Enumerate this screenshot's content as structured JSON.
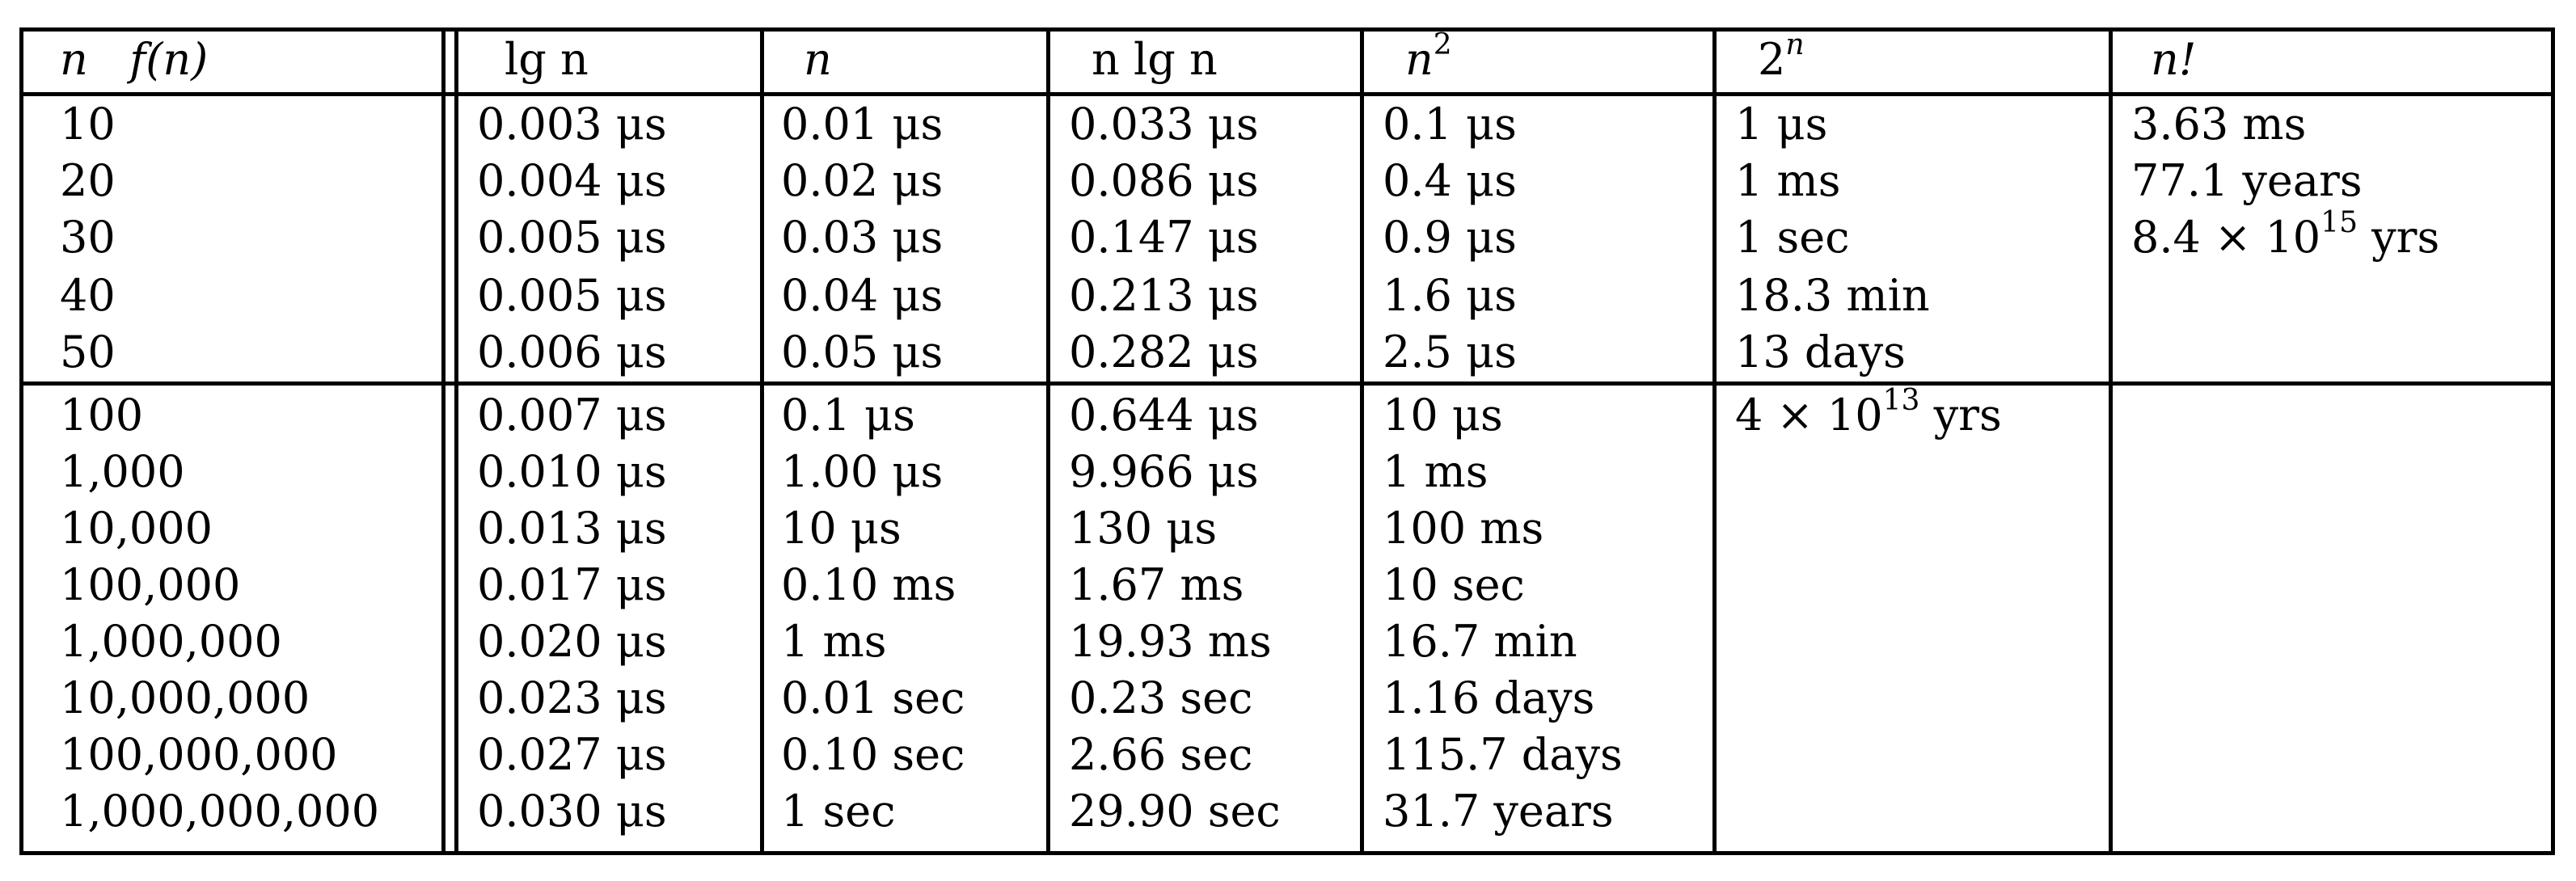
{
  "table": {
    "headers": [
      {
        "base": "n   f(n)",
        "sup": ""
      },
      {
        "base": "lg n",
        "sup": ""
      },
      {
        "base": "n",
        "sup": ""
      },
      {
        "base": "n lg n",
        "sup": ""
      },
      {
        "base": "n",
        "sup": "2"
      },
      {
        "base": "2",
        "sup": "n"
      },
      {
        "base": "n!",
        "sup": ""
      }
    ],
    "rows": [
      {
        "cells": [
          {
            "base": "10"
          },
          {
            "base": "0.003 μs"
          },
          {
            "base": "0.01 μs"
          },
          {
            "base": "0.033 μs"
          },
          {
            "base": "0.1 μs"
          },
          {
            "base": "1 μs"
          },
          {
            "base": "3.63 ms"
          }
        ]
      },
      {
        "cells": [
          {
            "base": "20"
          },
          {
            "base": "0.004 μs"
          },
          {
            "base": "0.02 μs"
          },
          {
            "base": "0.086 μs"
          },
          {
            "base": "0.4 μs"
          },
          {
            "base": "1 ms"
          },
          {
            "base": "77.1 years"
          }
        ]
      },
      {
        "cells": [
          {
            "base": "30"
          },
          {
            "base": "0.005 μs"
          },
          {
            "base": "0.03 μs"
          },
          {
            "base": "0.147 μs"
          },
          {
            "base": "0.9 μs"
          },
          {
            "base": "1 sec"
          },
          {
            "base": "8.4 × 10",
            "sup": "15",
            "post": " yrs"
          }
        ]
      },
      {
        "cells": [
          {
            "base": "40"
          },
          {
            "base": "0.005 μs"
          },
          {
            "base": "0.04 μs"
          },
          {
            "base": "0.213 μs"
          },
          {
            "base": "1.6 μs"
          },
          {
            "base": "18.3 min"
          },
          {
            "base": ""
          }
        ]
      },
      {
        "cells": [
          {
            "base": "50"
          },
          {
            "base": "0.006 μs"
          },
          {
            "base": "0.05 μs"
          },
          {
            "base": "0.282 μs"
          },
          {
            "base": "2.5 μs"
          },
          {
            "base": "13 days"
          },
          {
            "base": ""
          }
        ]
      },
      {
        "cells": [
          {
            "base": "100"
          },
          {
            "base": "0.007 μs"
          },
          {
            "base": "0.1 μs"
          },
          {
            "base": "0.644 μs"
          },
          {
            "base": "10 μs"
          },
          {
            "base": "4 × 10",
            "sup": "13",
            "post": " yrs"
          },
          {
            "base": ""
          }
        ]
      },
      {
        "cells": [
          {
            "base": "1,000"
          },
          {
            "base": "0.010 μs"
          },
          {
            "base": "1.00 μs"
          },
          {
            "base": "9.966 μs"
          },
          {
            "base": "1 ms"
          },
          {
            "base": ""
          },
          {
            "base": ""
          }
        ]
      },
      {
        "cells": [
          {
            "base": "10,000"
          },
          {
            "base": "0.013 μs"
          },
          {
            "base": "10 μs"
          },
          {
            "base": "130 μs"
          },
          {
            "base": "100 ms"
          },
          {
            "base": ""
          },
          {
            "base": ""
          }
        ]
      },
      {
        "cells": [
          {
            "base": "100,000"
          },
          {
            "base": "0.017 μs"
          },
          {
            "base": "0.10 ms"
          },
          {
            "base": "1.67 ms"
          },
          {
            "base": "10 sec"
          },
          {
            "base": ""
          },
          {
            "base": ""
          }
        ]
      },
      {
        "cells": [
          {
            "base": "1,000,000"
          },
          {
            "base": "0.020 μs"
          },
          {
            "base": "1 ms"
          },
          {
            "base": "19.93 ms"
          },
          {
            "base": "16.7 min"
          },
          {
            "base": ""
          },
          {
            "base": ""
          }
        ]
      },
      {
        "cells": [
          {
            "base": "10,000,000"
          },
          {
            "base": "0.023 μs"
          },
          {
            "base": "0.01 sec"
          },
          {
            "base": "0.23 sec"
          },
          {
            "base": "1.16 days"
          },
          {
            "base": ""
          },
          {
            "base": ""
          }
        ]
      },
      {
        "cells": [
          {
            "base": "100,000,000"
          },
          {
            "base": "0.027 μs"
          },
          {
            "base": "0.10 sec"
          },
          {
            "base": "2.66 sec"
          },
          {
            "base": "115.7 days"
          },
          {
            "base": ""
          },
          {
            "base": ""
          }
        ]
      },
      {
        "cells": [
          {
            "base": "1,000,000,000"
          },
          {
            "base": "0.030 μs"
          },
          {
            "base": "1 sec"
          },
          {
            "base": "29.90 sec"
          },
          {
            "base": "31.7 years"
          },
          {
            "base": ""
          },
          {
            "base": ""
          }
        ]
      }
    ]
  }
}
